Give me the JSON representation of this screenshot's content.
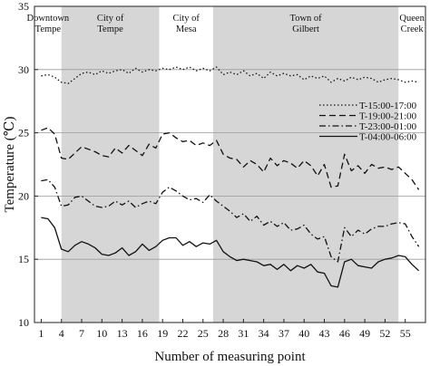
{
  "chart_data": {
    "type": "line",
    "title": "",
    "xlabel": "Number of measuring point",
    "ylabel": "Temperature (℃)",
    "xlim": [
      0,
      58
    ],
    "ylim": [
      10,
      35
    ],
    "x_ticks": [
      1,
      4,
      7,
      10,
      13,
      16,
      19,
      22,
      25,
      28,
      31,
      34,
      37,
      40,
      43,
      46,
      49,
      52,
      55
    ],
    "y_ticks": [
      10,
      15,
      20,
      25,
      30,
      35
    ],
    "grid": "horizontal",
    "legend_position": "right",
    "regions": [
      {
        "label_lines": [
          "Downtown",
          "Tempe"
        ],
        "x_start": 0,
        "x_end": 4,
        "shaded": false
      },
      {
        "label_lines": [
          "City of",
          "Tempe"
        ],
        "x_start": 4,
        "x_end": 18.5,
        "shaded": true
      },
      {
        "label_lines": [
          "City of",
          "Mesa"
        ],
        "x_start": 18.5,
        "x_end": 26.5,
        "shaded": false
      },
      {
        "label_lines": [
          "Town of",
          "Gilbert"
        ],
        "x_start": 26.5,
        "x_end": 54,
        "shaded": true
      },
      {
        "label_lines": [
          "Queen",
          "Creek"
        ],
        "x_start": 54,
        "x_end": 58,
        "shaded": false
      }
    ],
    "x": [
      1,
      2,
      3,
      4,
      5,
      6,
      7,
      8,
      9,
      10,
      11,
      12,
      13,
      14,
      15,
      16,
      17,
      18,
      19,
      20,
      21,
      22,
      23,
      24,
      25,
      26,
      27,
      28,
      29,
      30,
      31,
      32,
      33,
      34,
      35,
      36,
      37,
      38,
      39,
      40,
      41,
      42,
      43,
      44,
      45,
      46,
      47,
      48,
      49,
      50,
      51,
      52,
      53,
      54,
      55,
      56,
      57
    ],
    "series": [
      {
        "name": "T-15:00-17:00",
        "dash": "1.5,2.5",
        "values": [
          29.5,
          29.6,
          29.4,
          29.0,
          28.9,
          29.3,
          29.7,
          29.8,
          29.6,
          29.9,
          29.7,
          29.9,
          30.0,
          29.7,
          30.1,
          29.8,
          30.0,
          29.9,
          30.1,
          30.0,
          30.2,
          30.0,
          30.2,
          29.9,
          30.1,
          29.9,
          30.2,
          29.6,
          29.8,
          29.6,
          29.9,
          29.5,
          29.7,
          29.3,
          29.8,
          29.5,
          29.7,
          29.5,
          29.6,
          29.2,
          29.5,
          29.3,
          29.5,
          29.0,
          29.3,
          29.1,
          29.4,
          29.2,
          29.4,
          29.3,
          29.0,
          29.2,
          29.3,
          29.2,
          29.0,
          29.1,
          29.0
        ]
      },
      {
        "name": "T-19:00-21:00",
        "dash": "7,4",
        "values": [
          25.2,
          25.4,
          24.9,
          23.0,
          22.9,
          23.4,
          23.9,
          23.7,
          23.5,
          23.2,
          23.1,
          23.8,
          23.4,
          24.0,
          23.6,
          23.2,
          24.1,
          23.8,
          24.9,
          25.0,
          24.6,
          24.3,
          24.4,
          24.0,
          24.2,
          24.0,
          24.4,
          23.3,
          23.0,
          22.9,
          22.3,
          22.8,
          22.5,
          21.9,
          23.0,
          22.4,
          22.8,
          22.6,
          22.2,
          22.8,
          22.4,
          21.6,
          22.5,
          20.7,
          20.8,
          23.3,
          22.0,
          22.4,
          21.8,
          22.5,
          22.2,
          22.3,
          22.1,
          22.3,
          21.8,
          21.3,
          20.5
        ]
      },
      {
        "name": "T-23:00-01:00",
        "dash": "7,3,1.5,3",
        "values": [
          21.2,
          21.3,
          20.7,
          19.2,
          19.3,
          19.9,
          20.0,
          19.6,
          19.2,
          19.1,
          19.2,
          19.6,
          19.3,
          19.6,
          19.1,
          19.4,
          19.6,
          19.4,
          20.3,
          20.7,
          20.4,
          20.0,
          19.7,
          19.8,
          19.5,
          20.1,
          19.6,
          19.2,
          18.8,
          18.3,
          18.6,
          18.0,
          18.4,
          17.7,
          18.0,
          17.6,
          17.9,
          17.3,
          17.4,
          17.7,
          17.0,
          16.6,
          16.8,
          15.2,
          14.8,
          17.5,
          16.8,
          17.3,
          17.0,
          17.4,
          17.6,
          17.6,
          17.8,
          17.9,
          17.8,
          16.8,
          16.0
        ]
      },
      {
        "name": "T-04:00-06:00",
        "dash": "",
        "values": [
          18.3,
          18.2,
          17.5,
          15.8,
          15.6,
          16.1,
          16.4,
          16.2,
          15.9,
          15.4,
          15.3,
          15.5,
          15.9,
          15.3,
          15.6,
          16.2,
          15.7,
          16.0,
          16.5,
          16.7,
          16.7,
          16.1,
          16.4,
          16.0,
          16.3,
          16.2,
          16.5,
          15.6,
          15.2,
          14.9,
          15.0,
          14.9,
          14.8,
          14.5,
          14.6,
          14.2,
          14.6,
          14.1,
          14.5,
          14.3,
          14.6,
          14.0,
          13.9,
          12.9,
          12.8,
          14.8,
          15.0,
          14.5,
          14.4,
          14.3,
          14.8,
          15.0,
          15.1,
          15.3,
          15.2,
          14.6,
          14.1
        ]
      }
    ]
  }
}
